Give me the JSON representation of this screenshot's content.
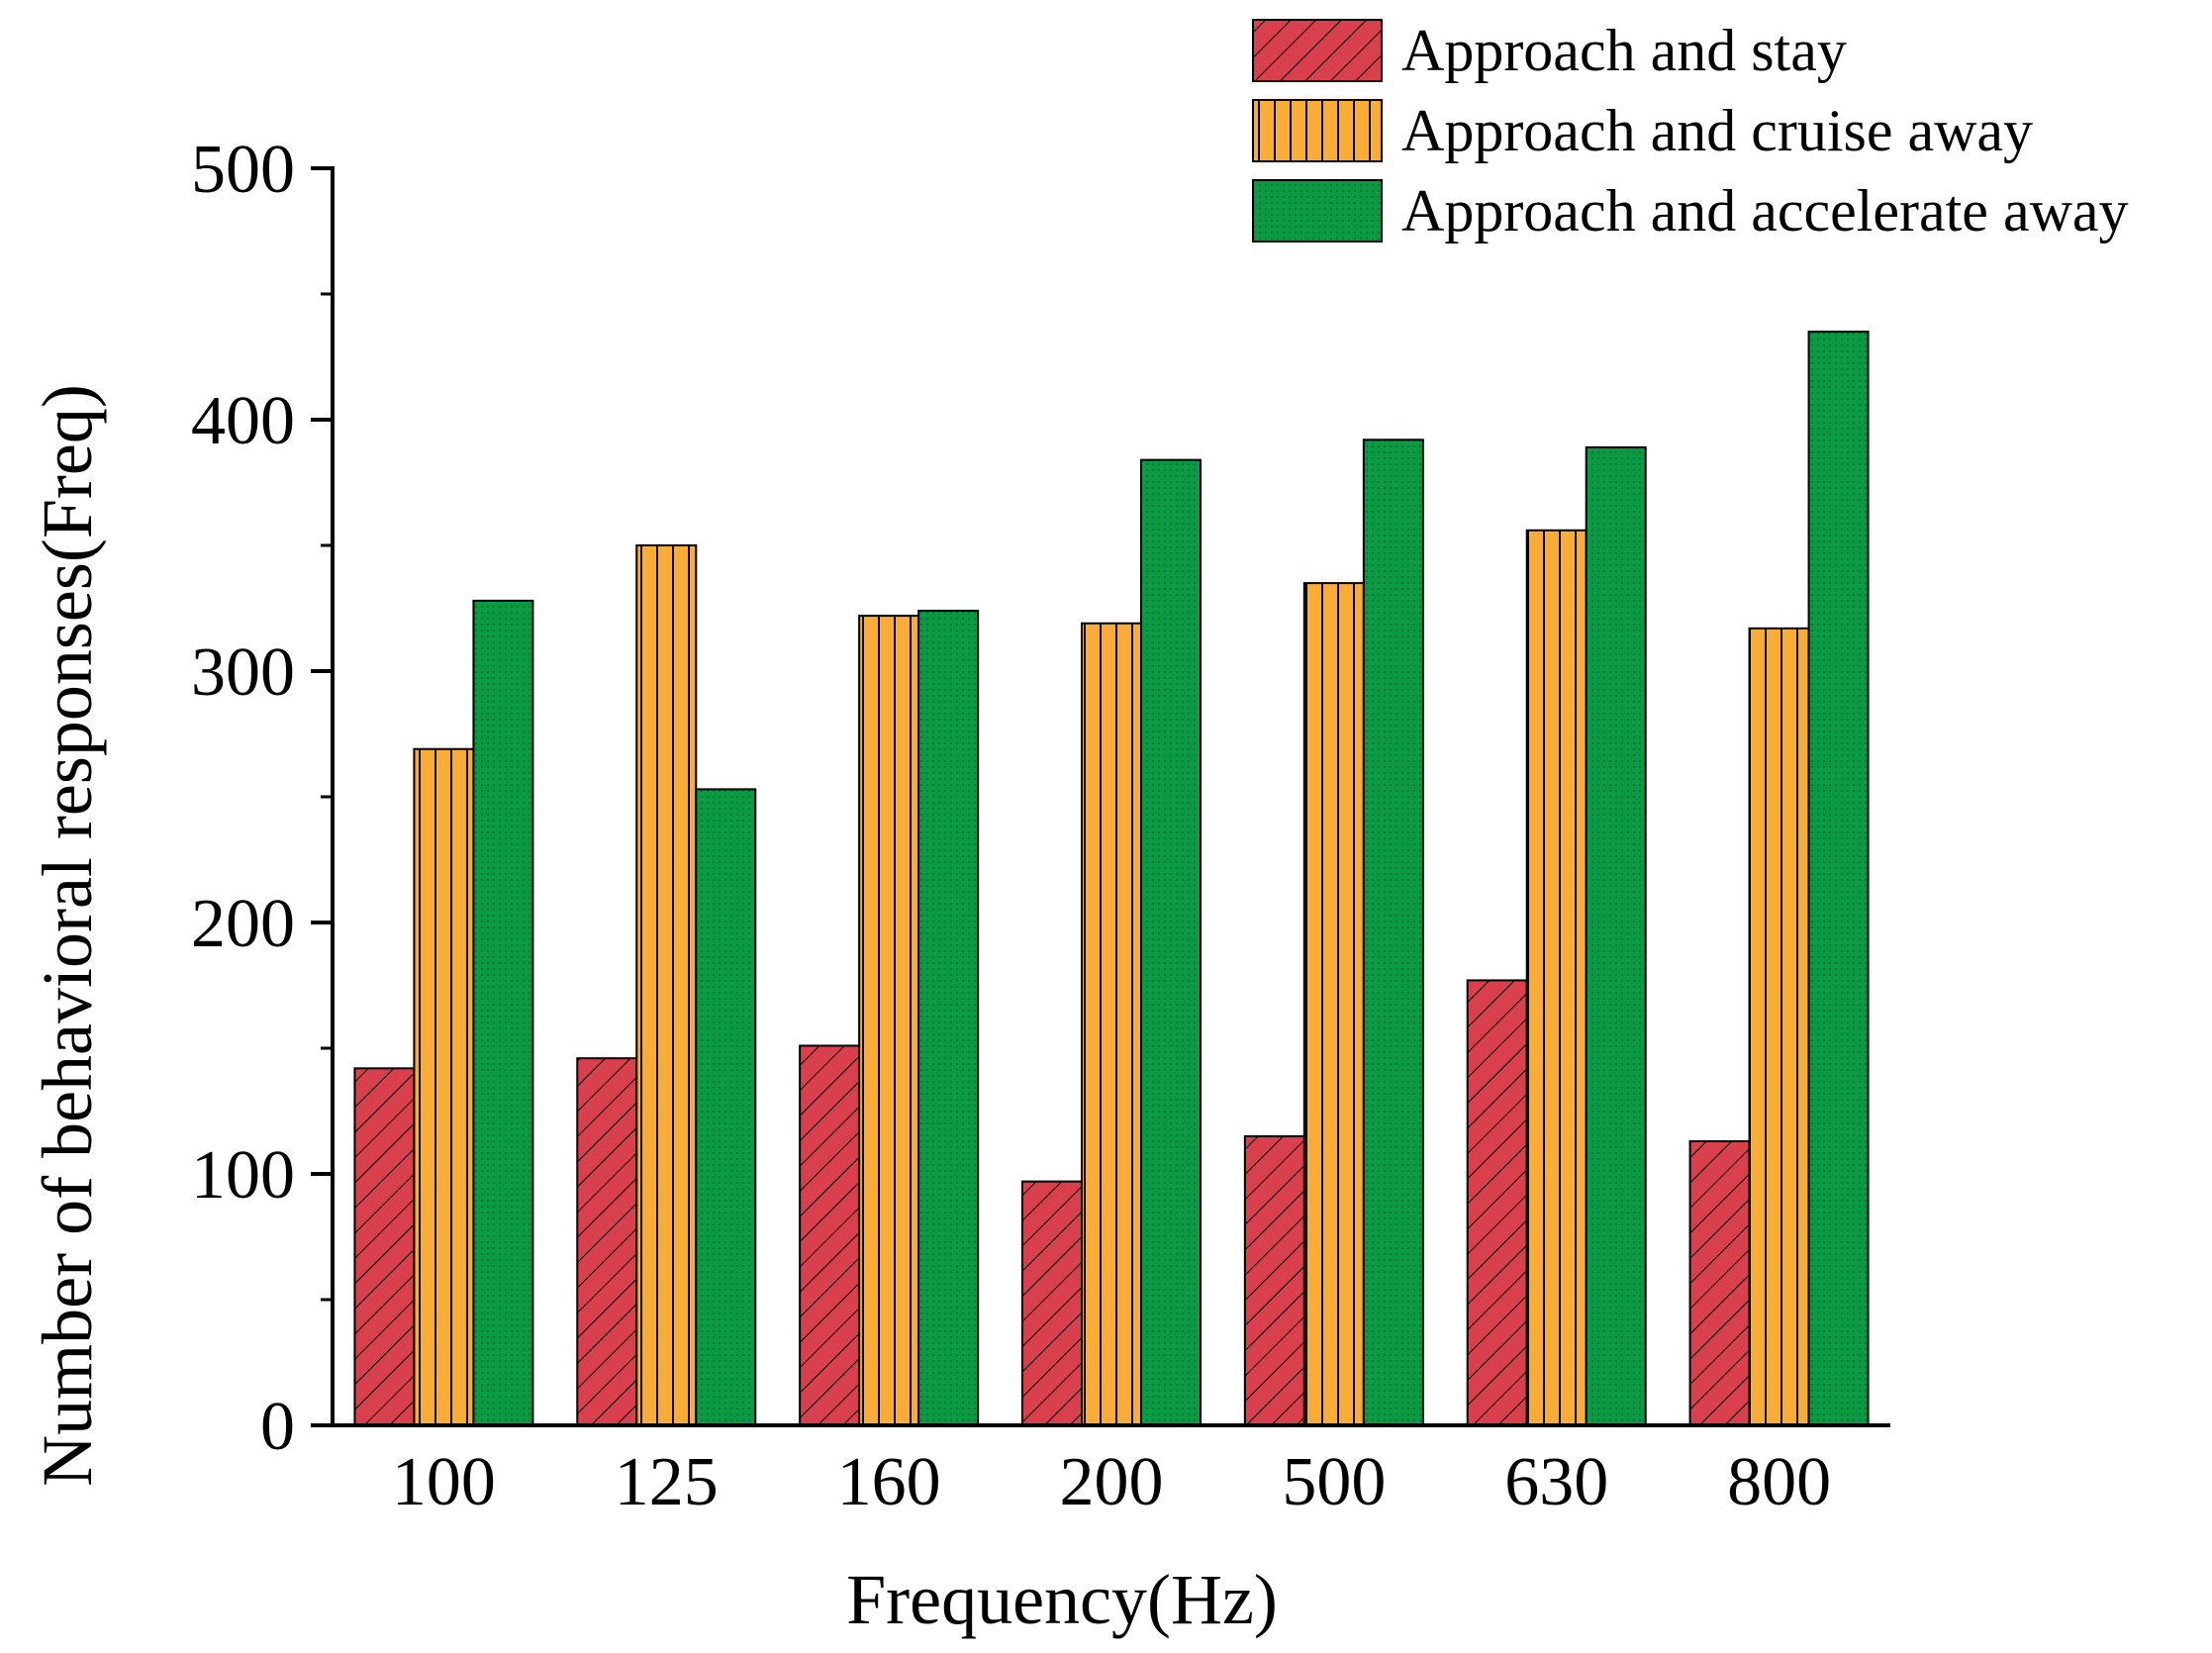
{
  "chart_data": {
    "type": "bar",
    "title": "",
    "xlabel": "Frequency(Hz)",
    "ylabel": "Number of behavioral responses(Freq)",
    "categories": [
      "100",
      "125",
      "160",
      "200",
      "500",
      "630",
      "800"
    ],
    "ylim": [
      0,
      500
    ],
    "yticks": [
      "0",
      "100",
      "200",
      "300",
      "400",
      "500"
    ],
    "legend_position": "top-right",
    "grid": false,
    "series": [
      {
        "name": "Approach and stay",
        "color": "#d9404e",
        "pattern": "diagonal-hatch",
        "values": [
          142,
          146,
          151,
          97,
          115,
          177,
          113
        ]
      },
      {
        "name": "Approach and cruise away",
        "color": "#f9ac36",
        "pattern": "vertical-lines",
        "values": [
          269,
          350,
          322,
          319,
          335,
          356,
          317
        ]
      },
      {
        "name": "Approach and accelerate away",
        "color": "#0b9a43",
        "pattern": "dots",
        "values": [
          328,
          253,
          324,
          384,
          392,
          389,
          435
        ]
      }
    ]
  }
}
